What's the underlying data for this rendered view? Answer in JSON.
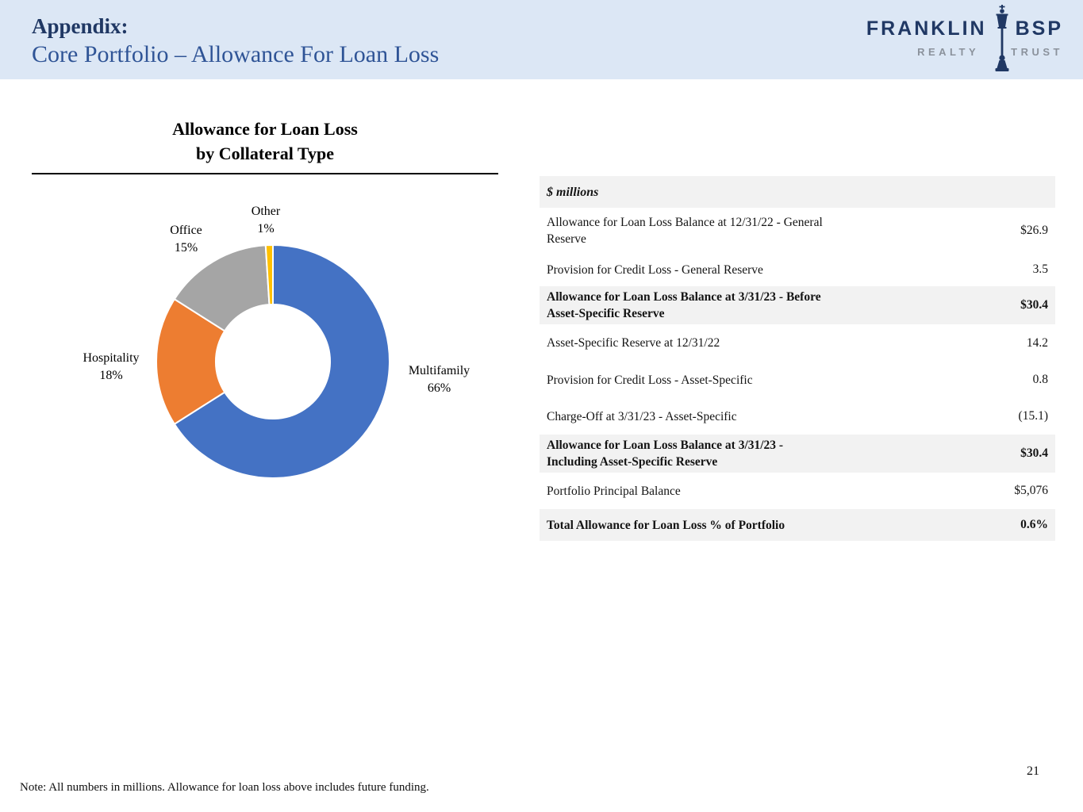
{
  "header": {
    "title_line1": "Appendix:",
    "title_line2": "Core Portfolio – Allowance For Loan Loss"
  },
  "logo": {
    "name_left": "FRANKLIN",
    "name_right": "BSP",
    "sub_left": "REALTY",
    "sub_right": "TRUST"
  },
  "chart": {
    "title_line1": "Allowance for Loan Loss",
    "title_line2": "by Collateral Type"
  },
  "chart_data": {
    "type": "pie",
    "subtype": "donut",
    "title": "Allowance for Loan Loss by Collateral Type",
    "categories": [
      "Multifamily",
      "Hospitality",
      "Office",
      "Other"
    ],
    "values": [
      66,
      18,
      15,
      1
    ],
    "unit": "%",
    "colors": [
      "#4472c4",
      "#ed7d31",
      "#a5a5a5",
      "#ffc000"
    ],
    "start_angle_deg": 0,
    "direction": "clockwise",
    "inner_radius_ratio": 0.49,
    "legend_position": "outside-labels",
    "display_labels": [
      {
        "name": "Multifamily",
        "pct": "66%"
      },
      {
        "name": "Hospitality",
        "pct": "18%"
      },
      {
        "name": "Office",
        "pct": "15%"
      },
      {
        "name": "Other",
        "pct": "1%"
      }
    ]
  },
  "table": {
    "header": "$ millions",
    "rows": [
      {
        "label": "Allowance for Loan Loss Balance at 12/31/22 - General Reserve",
        "value": "$26.9",
        "emphasis": false
      },
      {
        "label": "Provision for Credit Loss - General Reserve",
        "value": "3.5",
        "emphasis": false
      },
      {
        "label": "Allowance for Loan Loss Balance at 3/31/23 - Before Asset-Specific Reserve",
        "value": "$30.4",
        "emphasis": true
      },
      {
        "label": "Asset-Specific Reserve at 12/31/22",
        "value": "14.2",
        "emphasis": false
      },
      {
        "label": "Provision for Credit Loss - Asset-Specific",
        "value": "0.8",
        "emphasis": false
      },
      {
        "label": "Charge-Off at 3/31/23 - Asset-Specific",
        "value": "(15.1)",
        "emphasis": false
      },
      {
        "label": "Allowance for Loan Loss Balance at 3/31/23 - Including Asset-Specific Reserve",
        "value": "$30.4",
        "emphasis": true
      },
      {
        "label": "Portfolio Principal Balance",
        "value": "$5,076",
        "emphasis": false
      },
      {
        "label": "Total Allowance for Loan Loss % of Portfolio",
        "value": "0.6%",
        "emphasis": true
      }
    ]
  },
  "footer": {
    "note": "Note: All numbers in millions. Allowance for loan loss above includes future funding.",
    "page_number": "21"
  },
  "colors": {
    "header_background": "#dce7f5",
    "title_navy": "#203864",
    "subtitle_blue": "#2f5496",
    "table_band_gray": "#f2f2f2",
    "logo_navy": "#203864",
    "logo_gray": "#8b929c"
  }
}
